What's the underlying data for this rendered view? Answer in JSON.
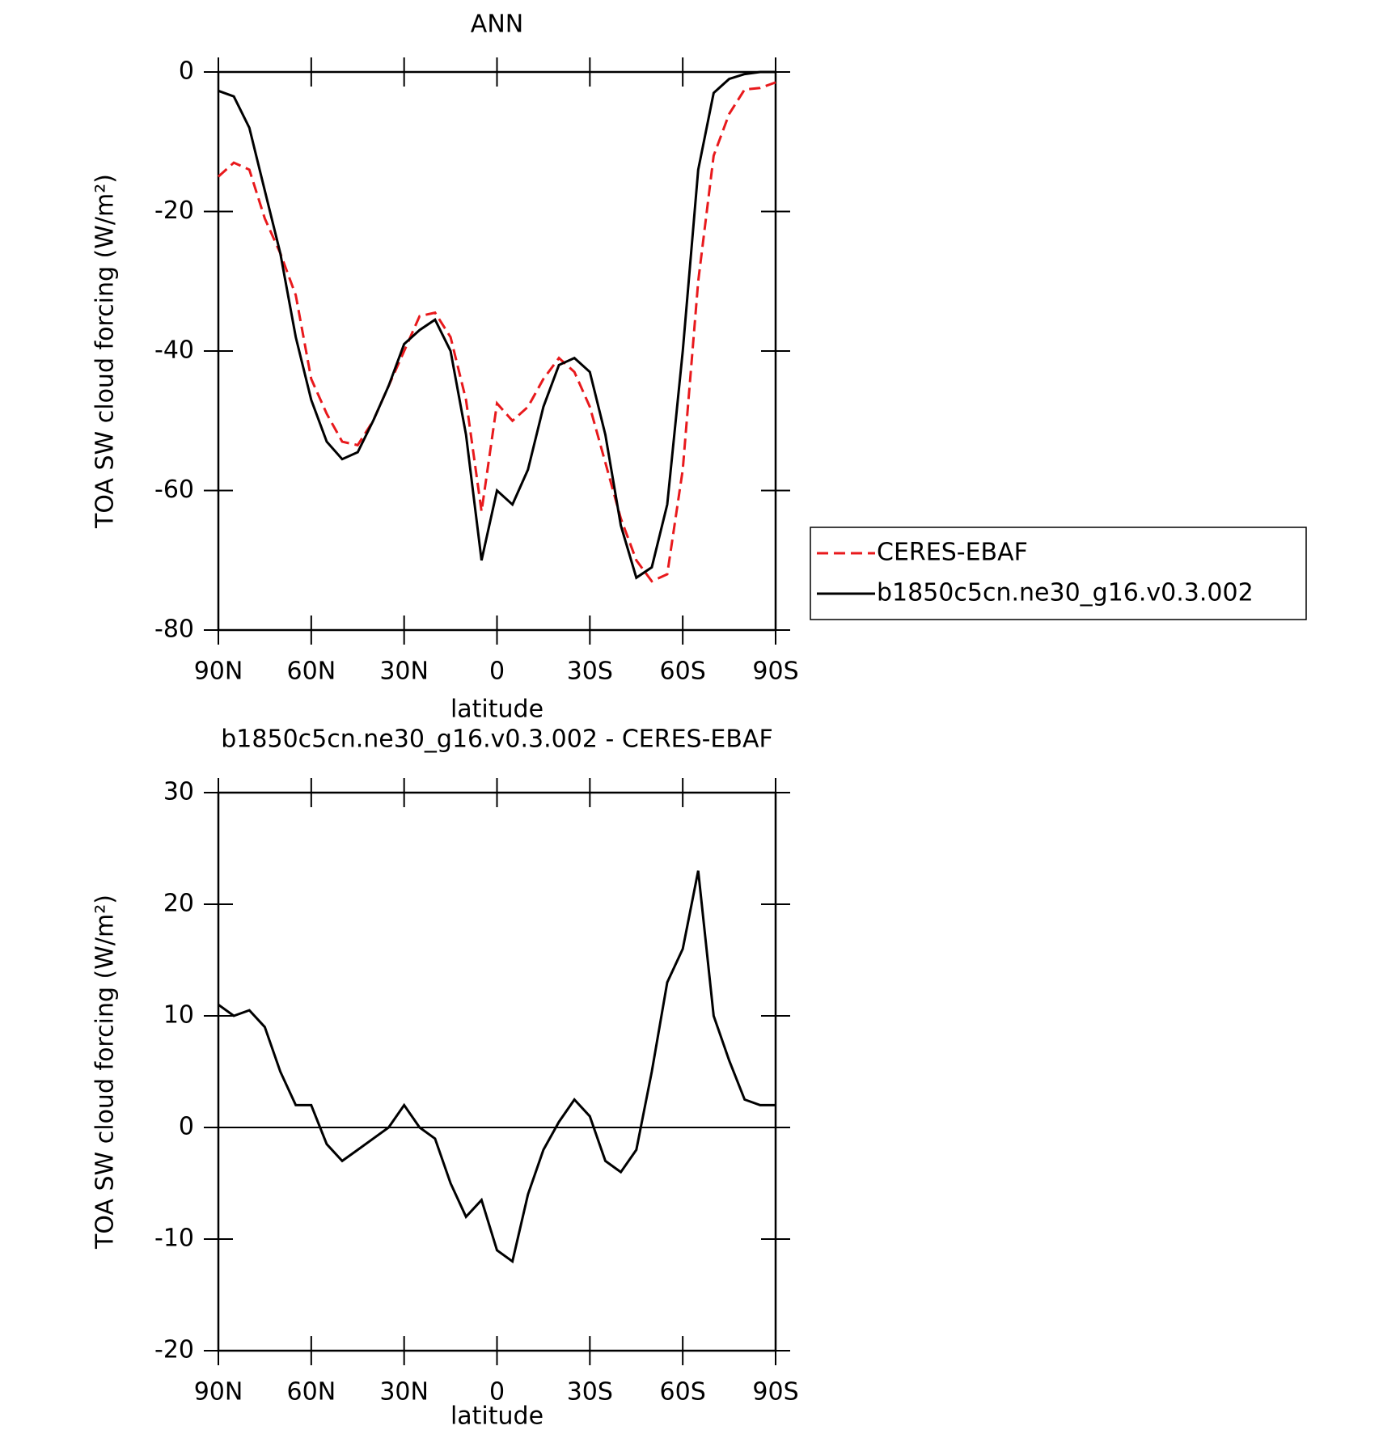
{
  "chart_data": [
    {
      "type": "line",
      "title": "ANN",
      "xlabel": "latitude",
      "ylabel": "TOA SW cloud forcing (W/m²)",
      "x": [
        90,
        85,
        80,
        75,
        70,
        65,
        60,
        55,
        50,
        45,
        40,
        35,
        30,
        25,
        20,
        15,
        10,
        5,
        0,
        -5,
        -10,
        -15,
        -20,
        -25,
        -30,
        -35,
        -40,
        -45,
        -50,
        -55,
        -60,
        -65,
        -70,
        -75,
        -80,
        -85,
        -90
      ],
      "series": [
        {
          "name": "CERES-EBAF",
          "color": "#e8191c",
          "linestyle": "dashed",
          "values": [
            -15,
            -13,
            -14,
            -21,
            -26,
            -32,
            -44,
            -49,
            -53,
            -53.5,
            -50,
            -45,
            -40,
            -35,
            -34.5,
            -38,
            -47,
            -63,
            -47.5,
            -50,
            -48,
            -44,
            -41,
            -43,
            -48,
            -56,
            -64,
            -70,
            -73,
            -72,
            -57,
            -30,
            -12,
            -6,
            -2.5,
            -2.3,
            -1.5
          ]
        },
        {
          "name": "b1850c5cn.ne30_g16.v0.3.002",
          "color": "#000000",
          "linestyle": "solid",
          "values": [
            -2.7,
            -3.5,
            -8,
            -17,
            -26,
            -38,
            -47,
            -53,
            -55.5,
            -54.5,
            -50,
            -45,
            -39,
            -37,
            -35.5,
            -40,
            -52,
            -70,
            -60,
            -62,
            -57,
            -48,
            -42,
            -41,
            -43,
            -52,
            -65,
            -72.5,
            -71,
            -62,
            -40,
            -14,
            -3,
            -1,
            -0.3,
            0,
            0
          ]
        }
      ],
      "xlim": [
        90,
        -90
      ],
      "xticks": [
        {
          "value": 90,
          "label": "90N"
        },
        {
          "value": 60,
          "label": "60N"
        },
        {
          "value": 30,
          "label": "30N"
        },
        0,
        {
          "value": -30,
          "label": "30S"
        },
        {
          "value": -60,
          "label": "60S"
        },
        {
          "value": -90,
          "label": "90S"
        }
      ],
      "ylim": [
        -80,
        0
      ],
      "yticks": [
        0,
        -20,
        -40,
        -60,
        -80
      ],
      "legend": "right"
    },
    {
      "type": "line",
      "title": "b1850c5cn.ne30_g16.v0.3.002 - CERES-EBAF",
      "xlabel": "latitude",
      "ylabel": "TOA SW cloud forcing (W/m²)",
      "x": [
        90,
        85,
        80,
        75,
        70,
        65,
        60,
        55,
        50,
        45,
        40,
        35,
        30,
        25,
        20,
        15,
        10,
        5,
        0,
        -5,
        -10,
        -15,
        -20,
        -25,
        -30,
        -35,
        -40,
        -45,
        -50,
        -55,
        -60,
        -65,
        -70,
        -75,
        -80,
        -85,
        -90
      ],
      "series": [
        {
          "color": "#000000",
          "linestyle": "solid",
          "values": [
            11,
            10,
            10.5,
            9,
            5,
            2,
            2,
            -1.5,
            -3,
            -2,
            -1,
            0,
            2,
            0,
            -1,
            -5,
            -8,
            -6.5,
            -11,
            -12,
            -6,
            -2,
            0.5,
            2.5,
            1,
            -3,
            -4,
            -2,
            5,
            13,
            16,
            23,
            10,
            6,
            2.5,
            2,
            2
          ]
        }
      ],
      "xlim": [
        90,
        -90
      ],
      "xticks": [
        {
          "value": 90,
          "label": "90N"
        },
        {
          "value": 60,
          "label": "60N"
        },
        {
          "value": 30,
          "label": "30N"
        },
        0,
        {
          "value": -30,
          "label": "30S"
        },
        {
          "value": -60,
          "label": "60S"
        },
        {
          "value": -90,
          "label": "90S"
        }
      ],
      "ylim": [
        -20,
        30
      ],
      "yticks": [
        30,
        20,
        10,
        0,
        -10,
        -20
      ]
    }
  ]
}
